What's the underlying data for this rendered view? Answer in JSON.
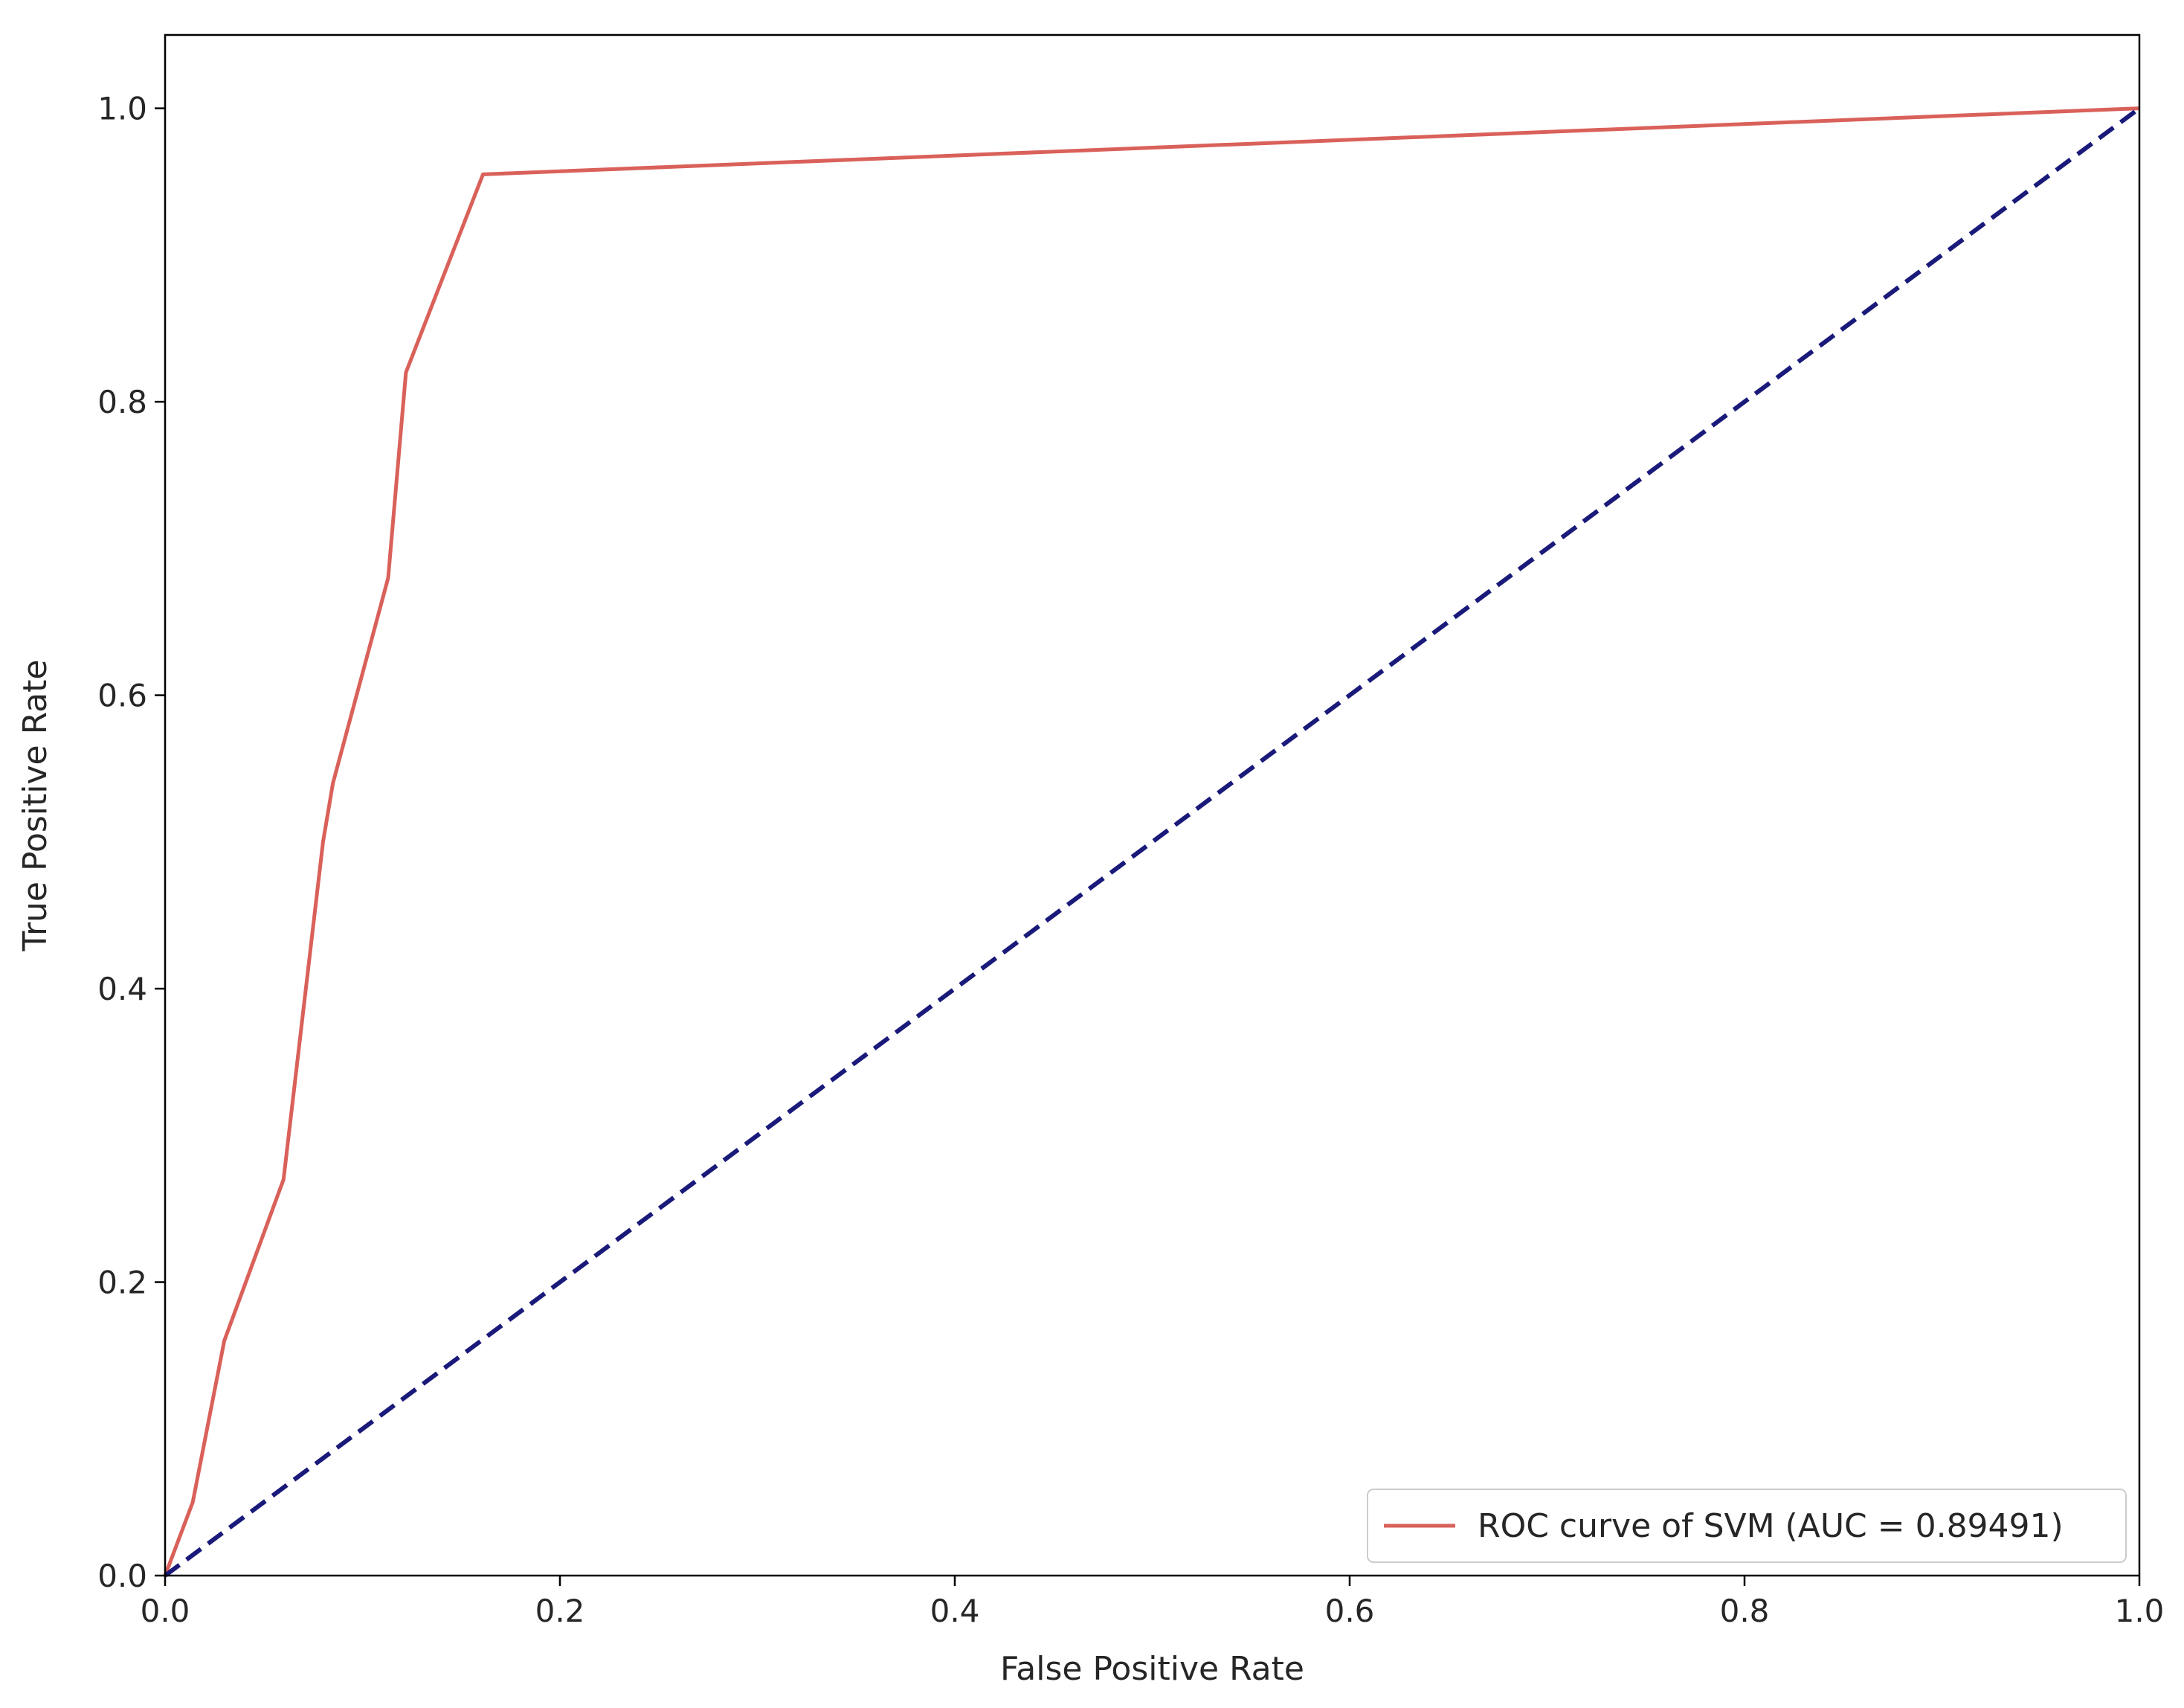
{
  "chart_data": {
    "type": "line",
    "title": "",
    "xlabel": "False Positive Rate",
    "ylabel": "True Positive Rate",
    "xlim": [
      0.0,
      1.0
    ],
    "ylim": [
      0.0,
      1.05
    ],
    "xticks": [
      "0.0",
      "0.2",
      "0.4",
      "0.6",
      "0.8",
      "1.0"
    ],
    "yticks": [
      "0.0",
      "0.2",
      "0.4",
      "0.6",
      "0.8",
      "1.0"
    ],
    "grid": false,
    "legend_position": "lower right",
    "series": [
      {
        "name": "ROC curve of SVM (AUC = 0.89491)",
        "color": "#d9615a",
        "style": "solid",
        "x": [
          0.0,
          0.014,
          0.03,
          0.06,
          0.08,
          0.085,
          0.113,
          0.122,
          0.161,
          1.0
        ],
        "y": [
          0.0,
          0.05,
          0.16,
          0.27,
          0.5,
          0.54,
          0.68,
          0.82,
          0.955,
          1.0
        ]
      },
      {
        "name": "",
        "color": "#1a1a7a",
        "style": "dashed",
        "x": [
          0.0,
          1.0
        ],
        "y": [
          0.0,
          1.0
        ]
      }
    ]
  }
}
